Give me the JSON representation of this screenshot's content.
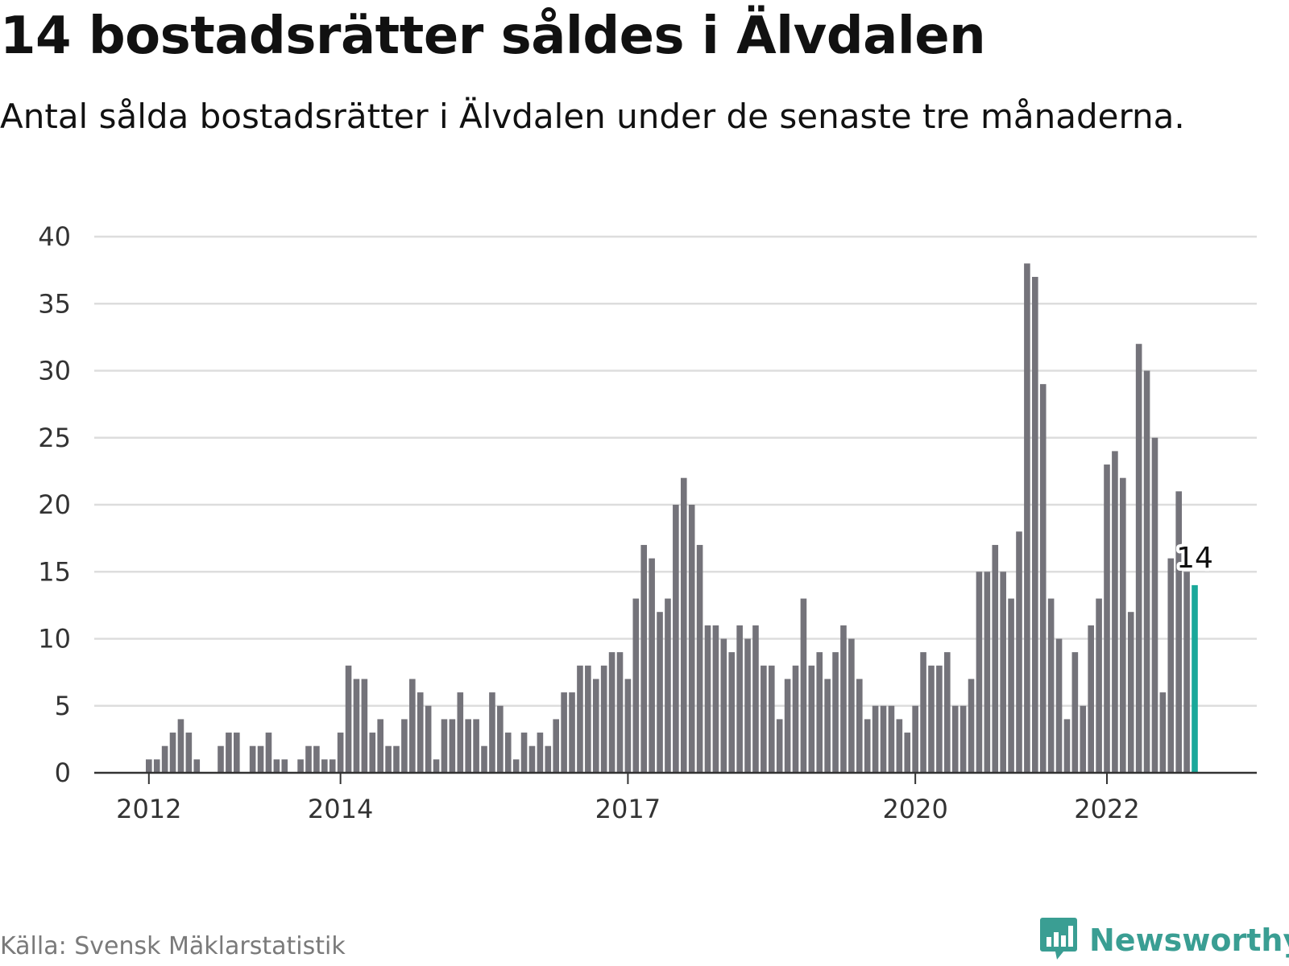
{
  "header": {
    "title": "14 bostadsrätter såldes i Älvdalen",
    "subtitle": "Antal sålda bostadsrätter i Älvdalen under de senaste tre månaderna."
  },
  "footer": {
    "source": "Källa: Svensk Mäklarstatistik",
    "brand": "Newsworthy",
    "brand_icon": "bar-chart-speech-bubble-icon"
  },
  "colors": {
    "bar": "#74737a",
    "highlight": "#1aa89a",
    "grid": "#dddddd",
    "axis": "#333333",
    "brand": "#3a9e93"
  },
  "chart_data": {
    "type": "bar",
    "title": "14 bostadsrätter såldes i Älvdalen",
    "subtitle": "Antal sålda bostadsrätter i Älvdalen under de senaste tre månaderna.",
    "xlabel": "",
    "ylabel": "",
    "ylim": [
      0,
      40
    ],
    "yticks": [
      0,
      5,
      10,
      15,
      20,
      25,
      30,
      35,
      40
    ],
    "xticks": [
      {
        "label": "2012",
        "index": 0
      },
      {
        "label": "2014",
        "index": 24
      },
      {
        "label": "2017",
        "index": 60
      },
      {
        "label": "2020",
        "index": 96
      },
      {
        "label": "2022",
        "index": 120
      }
    ],
    "grid": true,
    "start": "2012-01",
    "highlight_label": "14",
    "values": [
      1,
      1,
      2,
      3,
      4,
      3,
      1,
      0,
      0,
      2,
      3,
      3,
      0,
      2,
      2,
      3,
      1,
      1,
      0,
      1,
      2,
      2,
      1,
      1,
      3,
      8,
      7,
      7,
      3,
      4,
      2,
      2,
      4,
      7,
      6,
      5,
      1,
      4,
      4,
      6,
      4,
      4,
      2,
      6,
      5,
      3,
      1,
      3,
      2,
      3,
      2,
      4,
      6,
      6,
      8,
      8,
      7,
      8,
      9,
      9,
      7,
      13,
      17,
      16,
      12,
      13,
      20,
      22,
      20,
      17,
      11,
      11,
      10,
      9,
      11,
      10,
      11,
      8,
      8,
      4,
      7,
      8,
      13,
      8,
      9,
      7,
      9,
      11,
      10,
      7,
      4,
      5,
      5,
      5,
      4,
      3,
      5,
      9,
      8,
      8,
      9,
      5,
      5,
      7,
      15,
      15,
      17,
      15,
      13,
      18,
      38,
      37,
      29,
      13,
      10,
      4,
      9,
      5,
      11,
      13,
      23,
      24,
      22,
      12,
      32,
      30,
      25,
      6,
      16,
      21,
      15,
      14
    ]
  }
}
